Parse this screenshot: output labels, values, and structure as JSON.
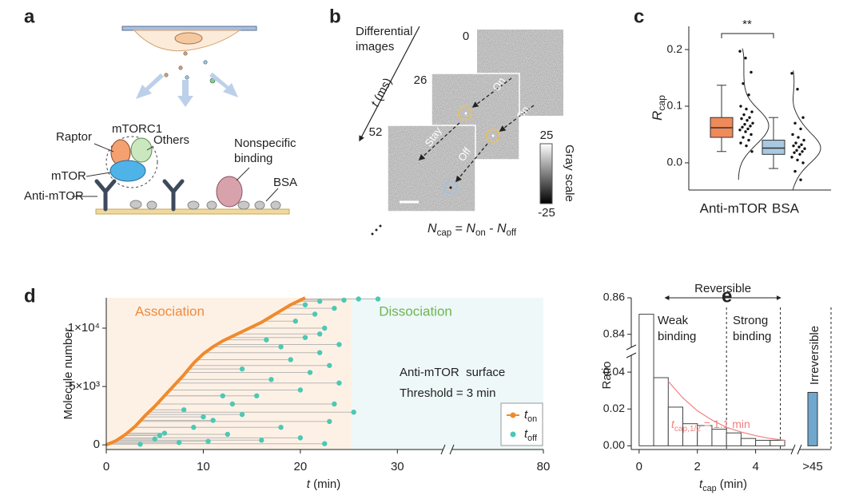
{
  "panel_labels": [
    "a",
    "b",
    "c",
    "d",
    "e"
  ],
  "panel_a": {
    "complex": "mTORC1",
    "raptor": "Raptor",
    "others": "Others",
    "nonspecific": [
      "Nonspecific",
      "binding"
    ],
    "mtor": "mTOR",
    "antibody": "Anti-mTOR",
    "bsa": "BSA"
  },
  "panel_b": {
    "title": [
      "Differential",
      "images"
    ],
    "time_axis": {
      "italic": "t",
      "rest": " (ms)"
    },
    "frames": [
      "0",
      "26",
      "52"
    ],
    "arrows": [
      "On",
      "On",
      "Stay",
      "Off"
    ],
    "colorbar": {
      "max": "25",
      "min": "-25",
      "label": "Gray scale"
    },
    "formula": [
      {
        "i": "N"
      },
      {
        "s": "cap"
      },
      {
        "t": " = "
      },
      {
        "i": "N"
      },
      {
        "s": "on"
      },
      {
        "t": " - "
      },
      {
        "i": "N"
      },
      {
        "s": "off"
      }
    ]
  },
  "chart_data": [
    {
      "type": "box",
      "categories": [
        "Anti-mTOR",
        "BSA"
      ],
      "y_label": {
        "italic": "R",
        "sub": "cap"
      },
      "ylim": [
        -0.048,
        0.241
      ],
      "yticks": [
        {
          "value": 0,
          "label": "0.0"
        },
        0.1,
        0.2
      ],
      "significance": "**",
      "boxes": [
        {
          "color": "#ef8a5a",
          "whisker_low": 0.02,
          "q1": 0.045,
          "median": 0.062,
          "q3": 0.08,
          "whisker_high": 0.137,
          "points": [
            0.197,
            0.185,
            0.16,
            0.14,
            0.12,
            0.1,
            0.095,
            0.09,
            0.085,
            0.08,
            0.078,
            0.075,
            0.07,
            0.068,
            0.065,
            0.063,
            0.06,
            0.058,
            0.055,
            0.05,
            0.045,
            0.04,
            0.035,
            0.03,
            0.02
          ]
        },
        {
          "color": "#a9c9e2",
          "whisker_low": -0.01,
          "q1": 0.015,
          "median": 0.026,
          "q3": 0.04,
          "whisker_high": 0.08,
          "points": [
            0.158,
            0.13,
            0.08,
            0.07,
            0.06,
            0.05,
            0.045,
            0.04,
            0.035,
            0.032,
            0.03,
            0.028,
            0.025,
            0.022,
            0.02,
            0.018,
            0.015,
            0.01,
            0.005,
            0,
            -0.015,
            -0.03
          ]
        }
      ]
    },
    {
      "type": "line_scatter",
      "y_label": "Molecule number",
      "x_label": {
        "italic": "t",
        "rest": " (min)"
      },
      "xlim": [
        0,
        80
      ],
      "x_break": 35,
      "xticks": [
        0,
        10,
        20,
        30,
        80
      ],
      "ylim": [
        -400,
        12600
      ],
      "yticks": [
        0,
        {
          "value": 5000,
          "label": "5×10³"
        },
        {
          "value": 10000,
          "label": "1×10⁴"
        }
      ],
      "regions": [
        {
          "label": "Association",
          "start": 0,
          "end": 25.3,
          "color": "#fdf1e5",
          "text_color": "#f08a3c"
        },
        {
          "label": "Dissociation",
          "start": 25.3,
          "end": 80,
          "color": "#eef8f8",
          "text_color": "#6db553"
        }
      ],
      "annotations": [
        "Anti-mTOR  surface",
        "Threshold = 3 min"
      ],
      "series": [
        {
          "name": "t",
          "subscript": "on",
          "color": "#f08a2c",
          "x": [
            0,
            1,
            2,
            3,
            4,
            5,
            6,
            7,
            8,
            9,
            10,
            11,
            12,
            13,
            14,
            15,
            16,
            17,
            18,
            19,
            20,
            20.5
          ],
          "values": [
            0,
            350,
            900,
            1600,
            2500,
            3300,
            4200,
            5100,
            6000,
            7000,
            7800,
            8400,
            8900,
            9300,
            9700,
            10100,
            10500,
            11000,
            11500,
            12000,
            12400,
            12600
          ]
        },
        {
          "name": "t",
          "subscript": "off",
          "color": "#4cc8b4",
          "x": [
            3.5,
            5,
            5.5,
            6,
            7.5,
            9,
            10.5,
            11,
            12.5,
            14,
            16,
            18,
            20,
            22.5,
            8,
            10,
            12,
            13,
            15.5,
            20,
            23.5,
            25.5,
            23,
            24,
            17,
            21,
            23,
            14,
            19,
            22,
            24,
            18,
            20.5,
            16.5,
            22,
            22.5,
            19.5,
            21.5,
            23.5,
            20.5,
            22,
            24.5,
            26,
            28
          ],
          "values": [
            50,
            500,
            800,
            1000,
            200,
            1500,
            300,
            2100,
            900,
            2600,
            400,
            1500,
            600,
            100,
            3000,
            2400,
            4200,
            3500,
            4200,
            4700,
            3500,
            2800,
            2000,
            5300,
            5600,
            6200,
            6800,
            6500,
            7300,
            7900,
            8600,
            8400,
            9200,
            9000,
            9500,
            10000,
            10600,
            11200,
            11700,
            12000,
            12300,
            12400,
            12500,
            12500
          ]
        }
      ]
    },
    {
      "type": "histogram",
      "y_label": "Ratio",
      "x_label": {
        "italic": "t",
        "sub": "cap",
        "rest": " (min)"
      },
      "bins": [
        0,
        0.5,
        1,
        1.5,
        2,
        2.5,
        3,
        3.5,
        4,
        4.5,
        5
      ],
      "values": [
        0.851,
        0.037,
        0.021,
        0.012,
        0.011,
        0.009,
        0.007,
        0.004,
        0.003,
        0.003
      ],
      "color": "#ffffff",
      "edge_color": "#444444",
      "xlim": [
        -0.27,
        5.3
      ],
      "xticks": [
        0,
        2,
        4
      ],
      "ylim": [
        -0.002,
        0.86
      ],
      "y_break": [
        0.05,
        0.832
      ],
      "yticks": [
        {
          "value": 0,
          "label": "0.00"
        },
        0.02,
        0.04,
        0.84,
        0.86
      ],
      "irreversible": {
        "category": ">45",
        "value": 0.029,
        "color": "#6fa8cc",
        "label": "Irreversible"
      },
      "fit": {
        "color": "#f07f7f",
        "x": [
          1,
          1.5,
          2,
          2.5,
          3,
          3.5,
          4,
          4.5,
          5
        ],
        "values": [
          0.035,
          0.026,
          0.019,
          0.014,
          0.01,
          0.0075,
          0.0055,
          0.004,
          0.003
        ],
        "label": {
          "italic": "t",
          "sub": "cap,1/2",
          "rest": " = 1.1 min"
        }
      },
      "reversible": {
        "label": "Reversible",
        "start": 0.9,
        "end": 4.85
      },
      "boundaries": [
        3,
        4.85
      ],
      "weak": [
        "Weak",
        "binding"
      ],
      "strong": [
        "Strong",
        "binding"
      ]
    }
  ]
}
